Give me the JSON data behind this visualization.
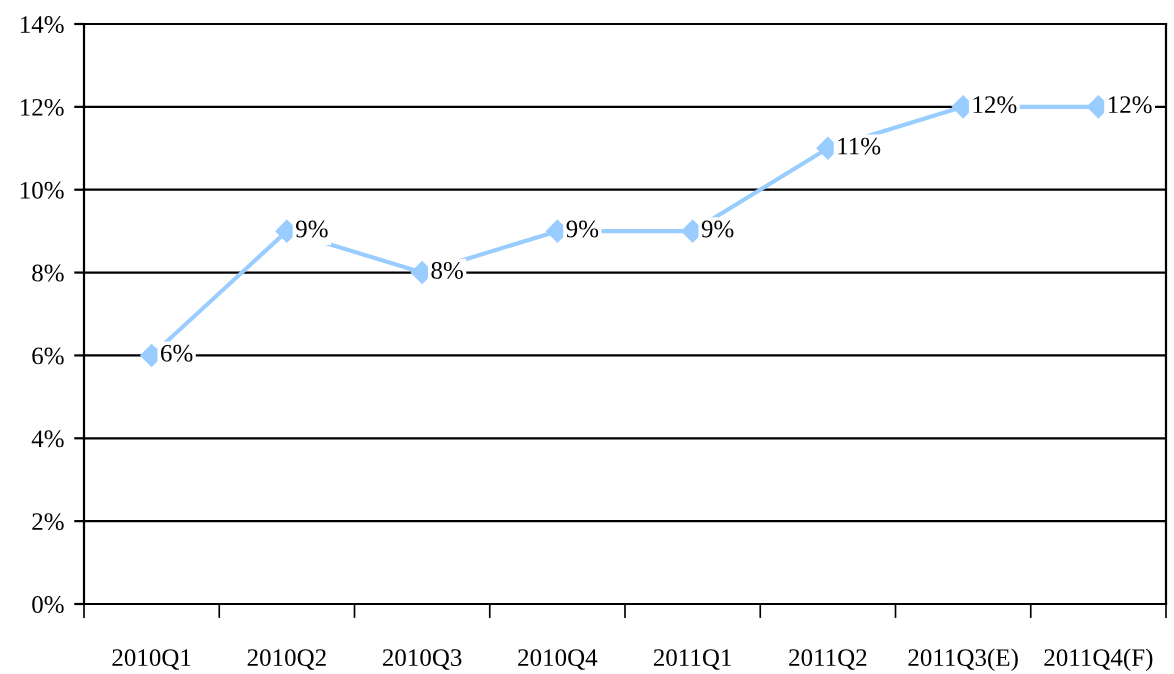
{
  "chart_data": {
    "type": "line",
    "categories": [
      "2010Q1",
      "2010Q2",
      "2010Q3",
      "2010Q4",
      "2011Q1",
      "2011Q2",
      "2011Q3(E)",
      "2011Q4(F)"
    ],
    "series": [
      {
        "color": "#99ccff",
        "values": [
          6,
          9,
          8,
          9,
          9,
          11,
          12,
          12
        ],
        "value_labels": [
          "6%",
          "9%",
          "8%",
          "9%",
          "9%",
          "11%",
          "12%",
          "12%"
        ]
      }
    ],
    "ylim": [
      0,
      14
    ],
    "yticks": [
      {
        "value": 0,
        "label": "0%"
      },
      {
        "value": 2,
        "label": "2%"
      },
      {
        "value": 4,
        "label": "4%"
      },
      {
        "value": 6,
        "label": "6%"
      },
      {
        "value": 8,
        "label": "8%"
      },
      {
        "value": 10,
        "label": "10%"
      },
      {
        "value": 12,
        "label": "12%"
      },
      {
        "value": 14,
        "label": "14%"
      }
    ],
    "grid": "y",
    "marker": "diamond",
    "line_style": "solid",
    "legend": false
  }
}
